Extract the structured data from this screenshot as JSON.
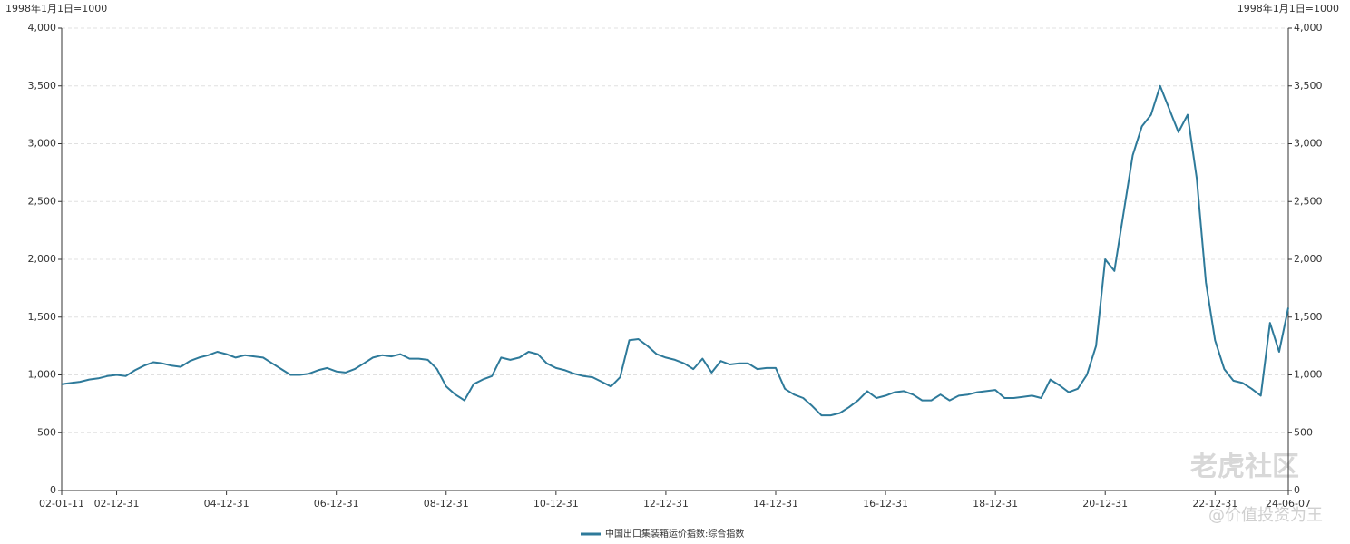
{
  "chart_data": {
    "type": "line",
    "y_axis_title": "1998年1月1日=1000",
    "y2_axis_title": "1998年1月1日=1000",
    "watermark": "老虎社区",
    "watermark_author": "@价值投资为王",
    "categories": [
      "02-01-11",
      null,
      null,
      null,
      null,
      null,
      "02-12-31",
      null,
      null,
      null,
      null,
      null,
      null,
      null,
      null,
      null,
      null,
      null,
      "04-12-31",
      null,
      null,
      null,
      null,
      null,
      null,
      null,
      null,
      null,
      null,
      null,
      "06-12-31",
      null,
      null,
      null,
      null,
      null,
      null,
      null,
      null,
      null,
      null,
      null,
      "08-12-31",
      null,
      null,
      null,
      null,
      null,
      null,
      null,
      null,
      null,
      null,
      null,
      "10-12-31",
      null,
      null,
      null,
      null,
      null,
      null,
      null,
      null,
      null,
      null,
      null,
      "12-12-31",
      null,
      null,
      null,
      null,
      null,
      null,
      null,
      null,
      null,
      null,
      null,
      "14-12-31",
      null,
      null,
      null,
      null,
      null,
      null,
      null,
      null,
      null,
      null,
      null,
      "16-12-31",
      null,
      null,
      null,
      null,
      null,
      null,
      null,
      null,
      null,
      null,
      null,
      "18-12-31",
      null,
      null,
      null,
      null,
      null,
      null,
      null,
      null,
      null,
      null,
      null,
      "20-12-31",
      null,
      null,
      null,
      null,
      null,
      null,
      null,
      null,
      null,
      null,
      null,
      "22-12-31",
      null,
      null,
      null,
      null,
      null,
      null,
      null,
      "24-06-07"
    ],
    "series": [
      {
        "name": "中国出口集装箱运价指数:综合指数",
        "color": "#2e7a9a",
        "values": [
          920,
          930,
          940,
          960,
          970,
          990,
          1000,
          990,
          1040,
          1080,
          1110,
          1100,
          1080,
          1070,
          1120,
          1150,
          1170,
          1200,
          1180,
          1150,
          1170,
          1160,
          1150,
          1100,
          1050,
          1000,
          1000,
          1010,
          1040,
          1060,
          1030,
          1020,
          1050,
          1100,
          1150,
          1170,
          1160,
          1180,
          1140,
          1140,
          1130,
          1050,
          900,
          830,
          780,
          920,
          960,
          990,
          1150,
          1130,
          1150,
          1200,
          1180,
          1100,
          1060,
          1040,
          1010,
          990,
          980,
          940,
          900,
          980,
          1300,
          1310,
          1250,
          1180,
          1150,
          1130,
          1100,
          1050,
          1140,
          1020,
          1120,
          1090,
          1100,
          1100,
          1050,
          1060,
          1060,
          880,
          830,
          800,
          730,
          650,
          650,
          670,
          720,
          780,
          860,
          800,
          820,
          850,
          860,
          830,
          780,
          780,
          830,
          780,
          820,
          830,
          850,
          860,
          870,
          800,
          800,
          810,
          820,
          800,
          960,
          910,
          850,
          880,
          1000,
          1250,
          2000,
          1900,
          2400,
          2900,
          3150,
          3250,
          3500,
          3300,
          3100,
          3250,
          2700,
          1800,
          1300,
          1050,
          950,
          930,
          880,
          820,
          1450,
          1200,
          1580
        ]
      }
    ],
    "ylim": [
      0,
      4000
    ],
    "yticks": [
      0,
      500,
      {
        "value": 1000,
        "label": "1,000"
      },
      {
        "value": 1500,
        "label": "1,500"
      },
      {
        "value": 2000,
        "label": "2,000"
      },
      {
        "value": 2500,
        "label": "2,500"
      },
      {
        "value": 3000,
        "label": "3,000"
      },
      {
        "value": 3500,
        "label": "3,500"
      },
      {
        "value": 4000,
        "label": "4,000"
      }
    ],
    "y2lim": [
      0,
      4000
    ],
    "y2ticks": [
      0,
      500,
      {
        "value": 1000,
        "label": "1,000"
      },
      {
        "value": 1500,
        "label": "1,500"
      },
      {
        "value": 2000,
        "label": "2,000"
      },
      {
        "value": 2500,
        "label": "2,500"
      },
      {
        "value": 3000,
        "label": "3,000"
      },
      {
        "value": 3500,
        "label": "3,500"
      },
      {
        "value": 4000,
        "label": "4,000"
      }
    ],
    "grid": true,
    "legend": "bottom"
  }
}
